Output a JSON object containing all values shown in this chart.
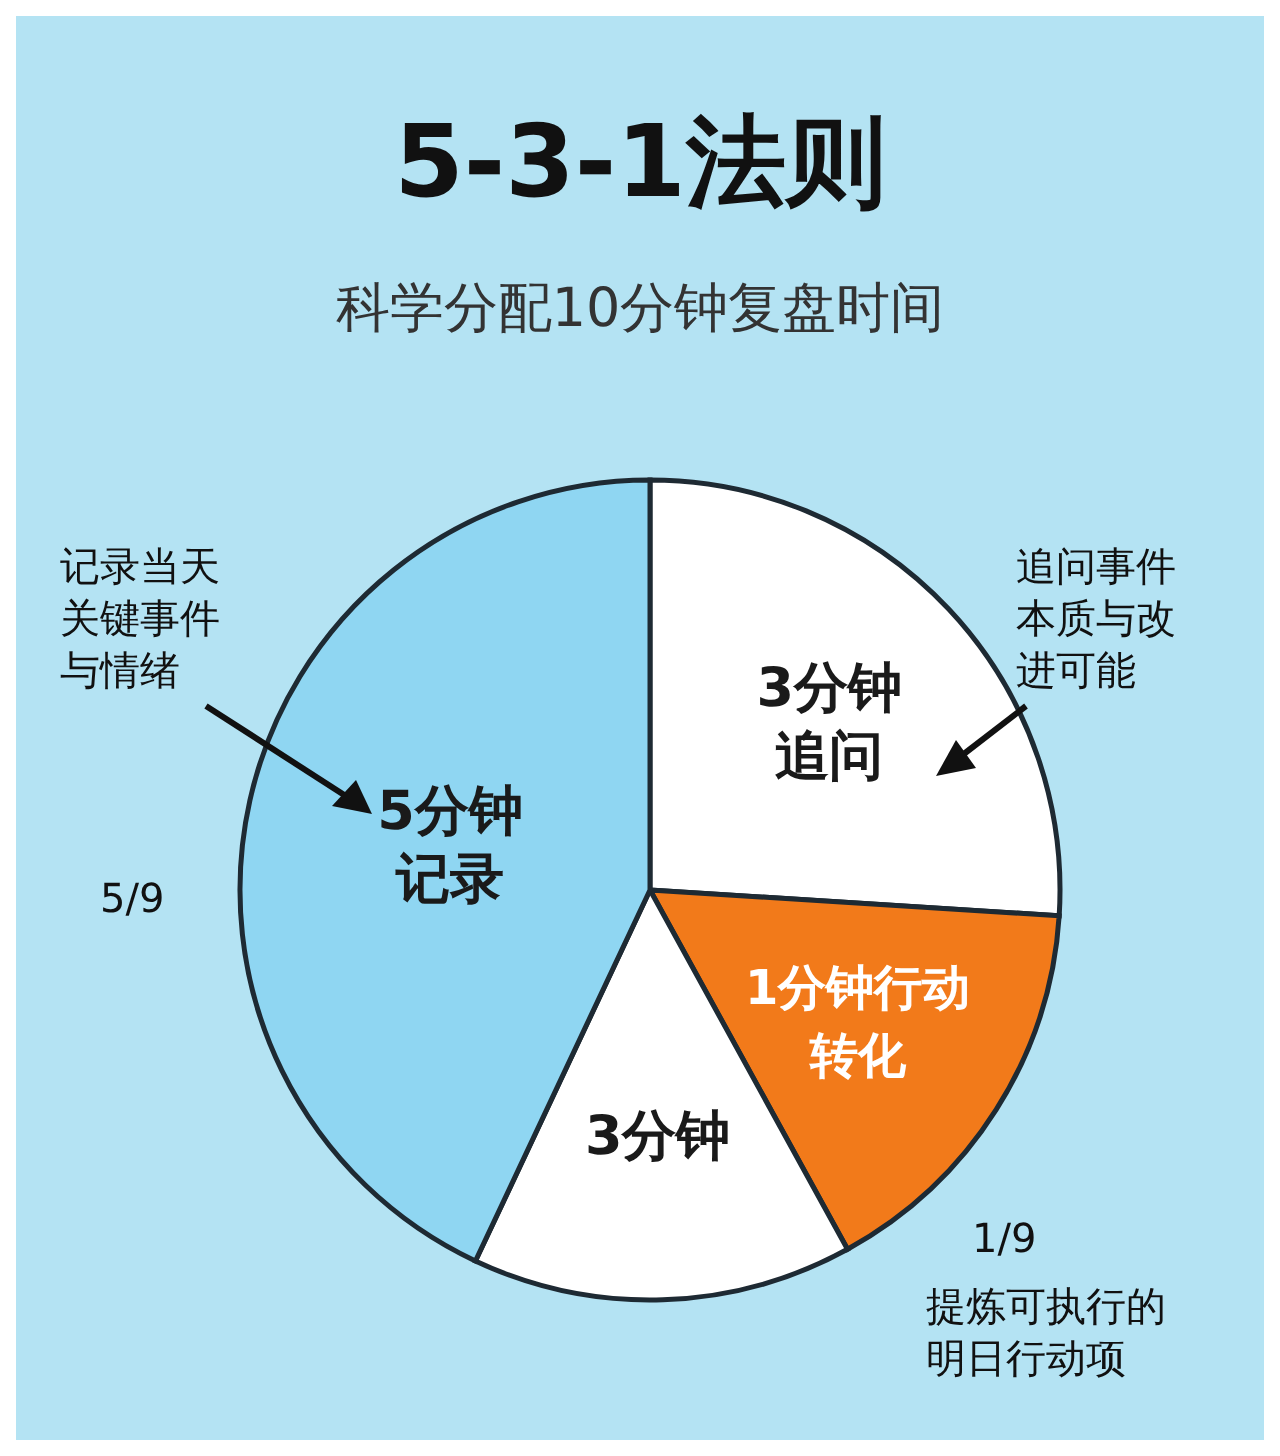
{
  "chart_data": {
    "type": "pie",
    "title": "5-3-1法则",
    "subtitle": "科学分配10分钟复盘时间",
    "categories": [
      "3分钟追问",
      "1分钟行动转化",
      "3分钟",
      "5分钟记录"
    ],
    "values": [
      26,
      16,
      15,
      43
    ],
    "colors": [
      "#ffffff",
      "#f27a1a",
      "#ffffff",
      "#8fd6f2"
    ],
    "legend": false,
    "annotations": [
      "记录当天关键事件与情绪",
      "5/9",
      "追问事件本质与改进可能",
      "1/9",
      "提炼可执行的明日行动项"
    ]
  }
}
